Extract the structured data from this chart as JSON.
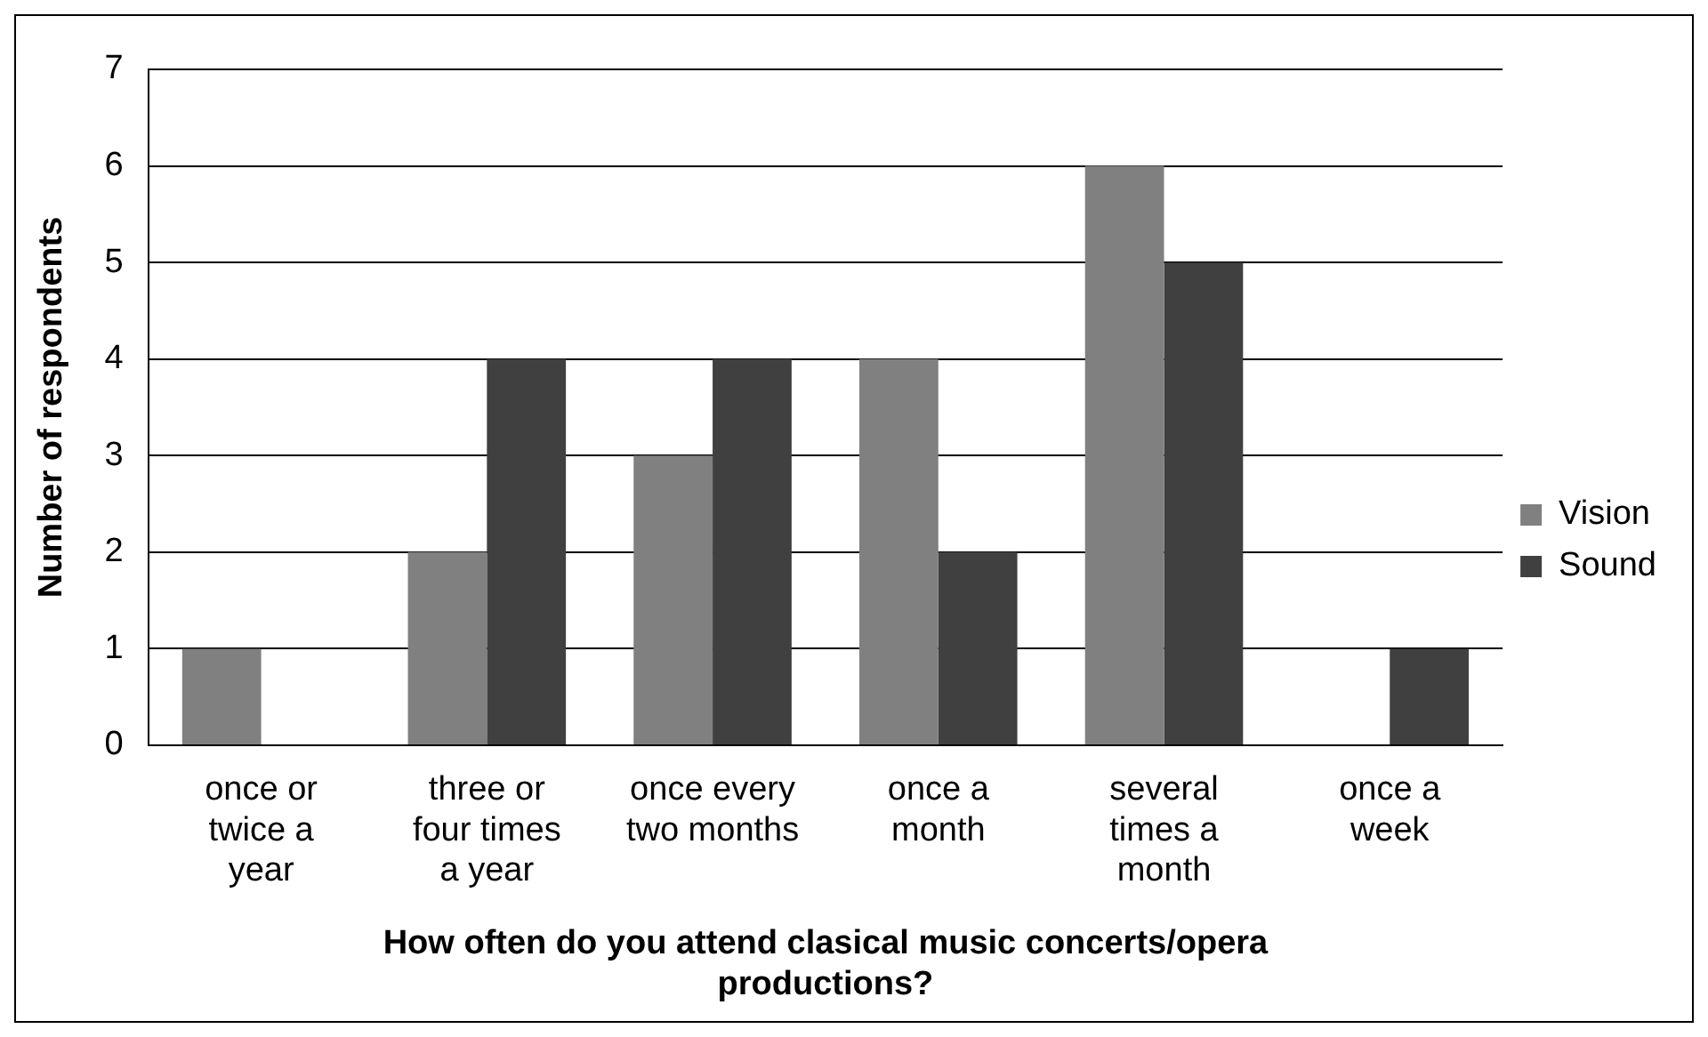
{
  "chart_data": {
    "type": "bar",
    "xlabel": "How often do you attend clasical music concerts/opera productions?",
    "ylabel": "Number of respondents",
    "categories": [
      "once or twice a year",
      "three or four times a year",
      "once every two months",
      "once a month",
      "several times a month",
      "once a week"
    ],
    "series": [
      {
        "name": "Vision",
        "color": "#808080",
        "values": [
          1,
          2,
          3,
          4,
          6,
          0
        ]
      },
      {
        "name": "Sound",
        "color": "#404040",
        "values": [
          0,
          4,
          4,
          2,
          5,
          1
        ]
      }
    ],
    "ylim": [
      0,
      7
    ],
    "yticks": [
      0,
      1,
      2,
      3,
      4,
      5,
      6,
      7
    ],
    "grid": "y",
    "legend": "right"
  }
}
